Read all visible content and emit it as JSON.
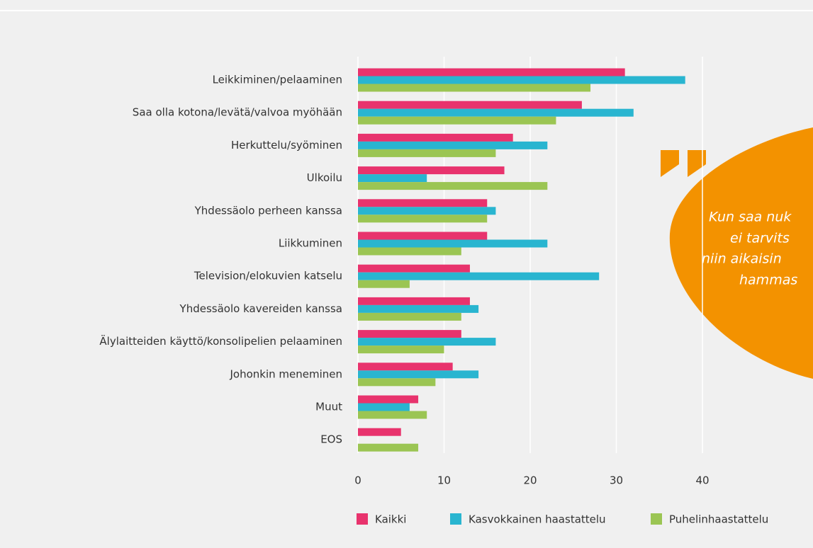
{
  "chart_data": {
    "type": "hbar",
    "categories": [
      "Leikkiminen/pelaaminen",
      "Saa olla kotona/levätä/valvoa myöhään",
      "Herkuttelu/syöminen",
      "Ulkoilu",
      "Yhdessäolo perheen kanssa",
      "Liikkuminen",
      "Television/elokuvien katselu",
      "Yhdessäolo kavereiden kanssa",
      "Älylaitteiden käyttö/konsolipelien pelaaminen",
      "Johonkin meneminen",
      "Muut",
      "EOS"
    ],
    "series": [
      {
        "name": "Kaikki",
        "color": "#e8336d",
        "values": [
          31,
          26,
          18,
          17,
          15,
          15,
          13,
          13,
          12,
          11,
          7,
          5
        ]
      },
      {
        "name": "Kasvokkainen haastattelu",
        "color": "#29b5d0",
        "values": [
          38,
          32,
          22,
          8,
          16,
          22,
          28,
          14,
          16,
          14,
          6,
          0
        ]
      },
      {
        "name": "Puhelinhaastattelu",
        "color": "#9bc553",
        "values": [
          27,
          23,
          16,
          22,
          15,
          12,
          6,
          12,
          10,
          9,
          8,
          7
        ]
      }
    ],
    "xlim": [
      0,
      40
    ],
    "xticks": [
      0,
      10,
      20,
      30,
      40
    ],
    "grid": true,
    "legend": "bottom",
    "quote": [
      "Kun saa nuk",
      "ei tarvits",
      "niin aikaisin",
      "hammas"
    ]
  }
}
